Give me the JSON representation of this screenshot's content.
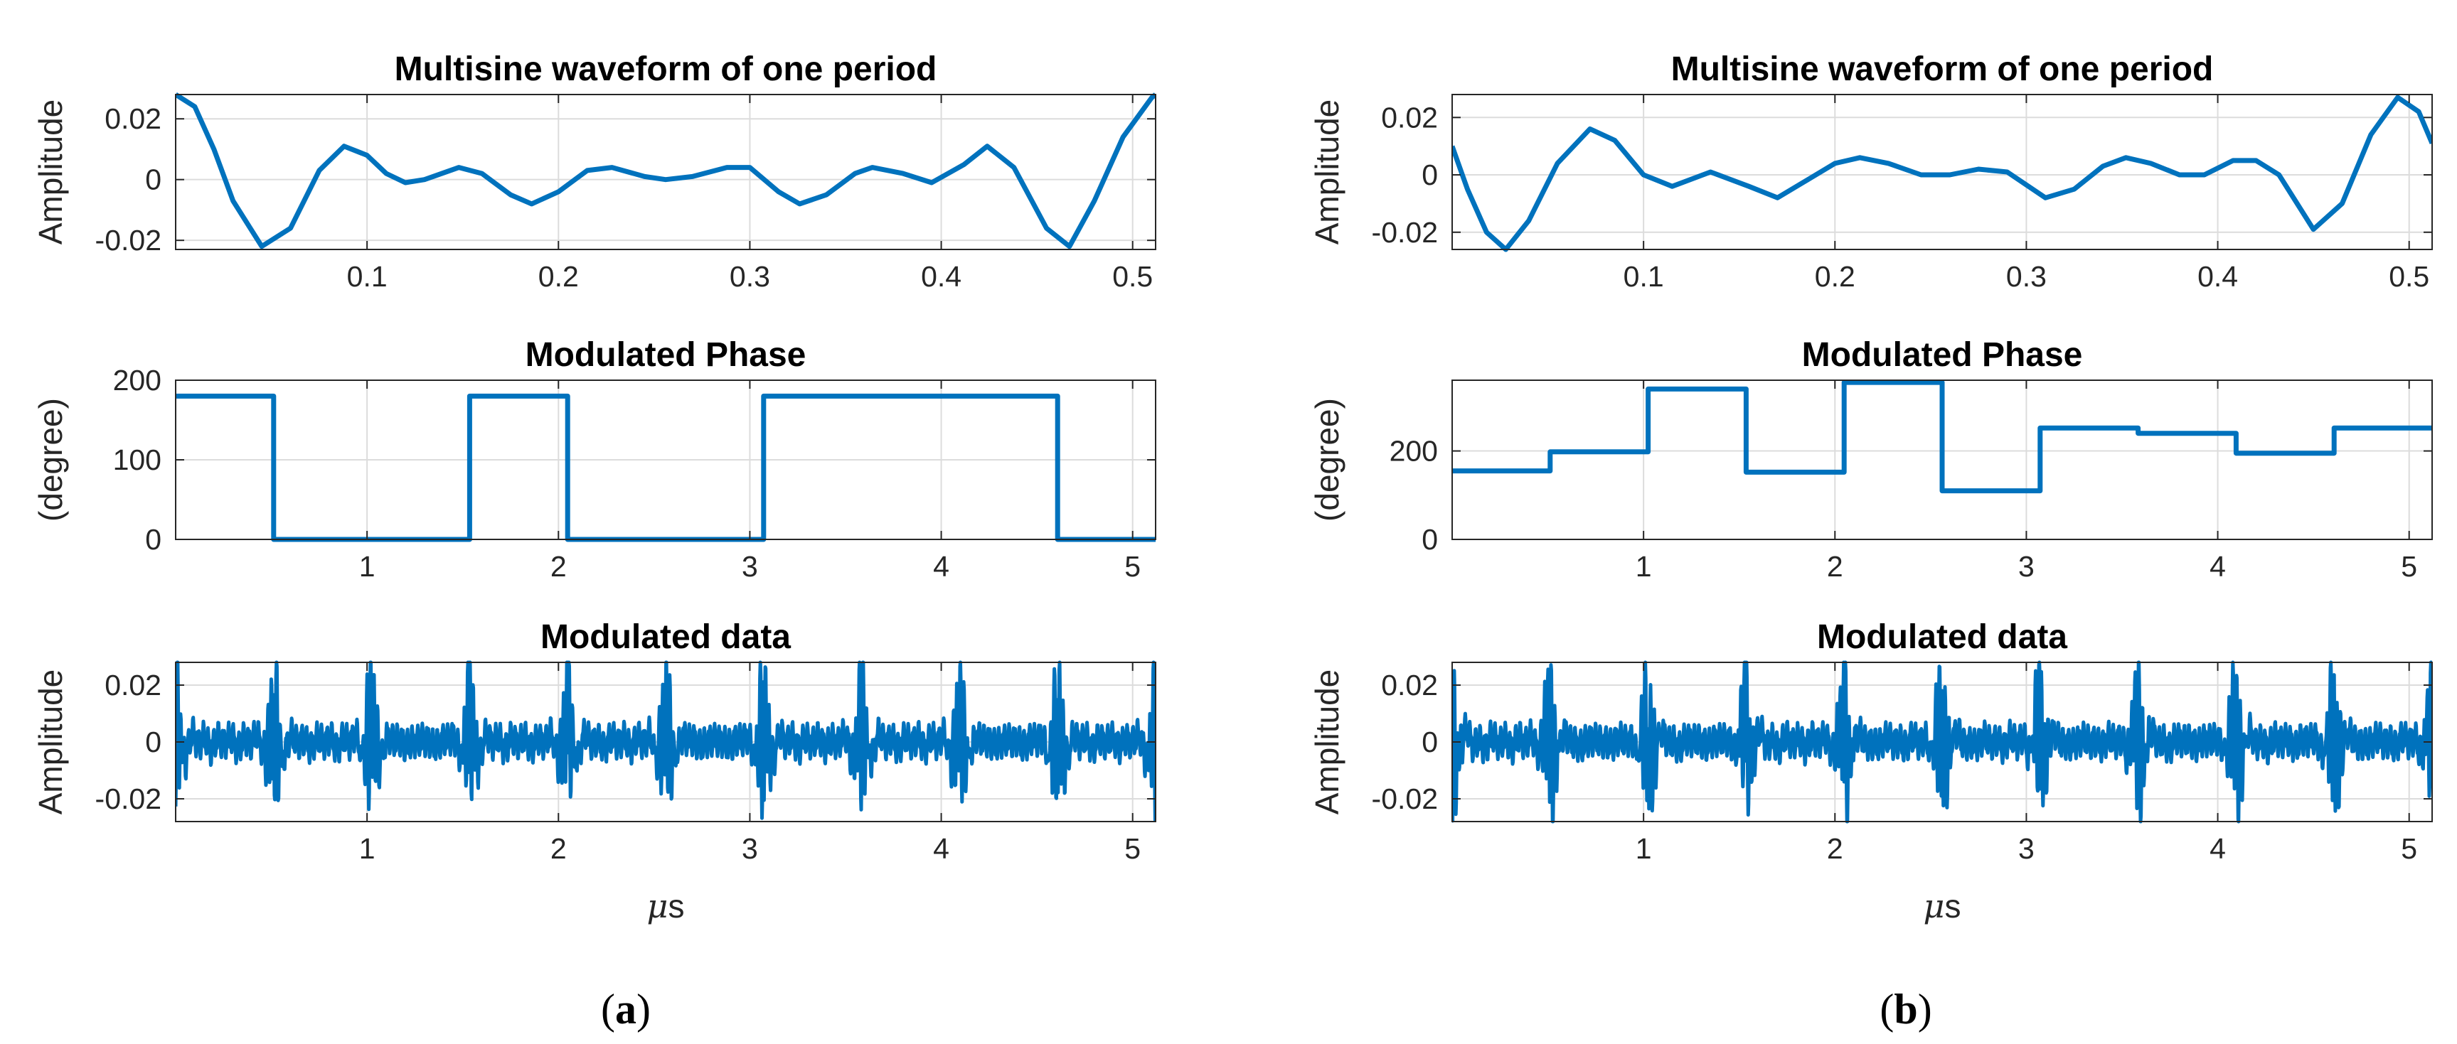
{
  "chart_data": [
    {
      "id": "a-waveform",
      "type": "line",
      "title": "Multisine waveform of one period",
      "xlabel": "",
      "ylabel": "Amplitude",
      "xlim": [
        0,
        0.512
      ],
      "ylim": [
        -0.023,
        0.028
      ],
      "xticks": [
        0.1,
        0.2,
        0.3,
        0.4,
        0.5
      ],
      "xtick_labels": [
        "0.1",
        "0.2",
        "0.3",
        "0.4",
        "0.5"
      ],
      "yticks": [
        -0.02,
        0,
        0.02
      ],
      "ytick_labels": [
        "-0.02",
        "0",
        "0.02"
      ],
      "grid": true,
      "series": [
        {
          "name": "waveform",
          "color": "#0072bd",
          "x": [
            0,
            0.01,
            0.02,
            0.03,
            0.045,
            0.06,
            0.075,
            0.088,
            0.1,
            0.11,
            0.12,
            0.13,
            0.148,
            0.16,
            0.175,
            0.186,
            0.2,
            0.215,
            0.228,
            0.245,
            0.256,
            0.27,
            0.288,
            0.3,
            0.315,
            0.326,
            0.34,
            0.355,
            0.364,
            0.38,
            0.395,
            0.412,
            0.424,
            0.438,
            0.455,
            0.467,
            0.48,
            0.495,
            0.51,
            0.512
          ],
          "values": [
            0.028,
            0.024,
            0.01,
            -0.007,
            -0.022,
            -0.016,
            0.003,
            0.011,
            0.008,
            0.002,
            -0.001,
            0.0,
            0.004,
            0.002,
            -0.005,
            -0.008,
            -0.004,
            0.003,
            0.004,
            0.001,
            0.0,
            0.001,
            0.004,
            0.004,
            -0.004,
            -0.008,
            -0.005,
            0.002,
            0.004,
            0.002,
            -0.001,
            0.005,
            0.011,
            0.004,
            -0.016,
            -0.022,
            -0.007,
            0.014,
            0.027,
            0.028
          ]
        }
      ]
    },
    {
      "id": "a-phase",
      "type": "line",
      "title": "Modulated Phase",
      "xlabel": "",
      "ylabel": "(degree)",
      "xlim": [
        0,
        5.12
      ],
      "ylim": [
        0,
        200
      ],
      "xticks": [
        1,
        2,
        3,
        4,
        5
      ],
      "xtick_labels": [
        "1",
        "2",
        "3",
        "4",
        "5"
      ],
      "yticks": [
        0,
        100,
        200
      ],
      "ytick_labels": [
        "0",
        "100",
        "200"
      ],
      "grid": true,
      "series": [
        {
          "name": "phase",
          "color": "#0072bd",
          "x": [
            0,
            0.512,
            0.512,
            1.536,
            1.536,
            2.048,
            2.048,
            3.072,
            3.072,
            4.608,
            4.608,
            5.12
          ],
          "values": [
            180,
            180,
            0,
            0,
            180,
            180,
            0,
            0,
            180,
            180,
            0,
            0
          ]
        }
      ]
    },
    {
      "id": "a-data",
      "type": "line",
      "title": "Modulated data",
      "xlabel": "μs",
      "ylabel": "Amplitude",
      "xlim": [
        0,
        5.12
      ],
      "ylim": [
        -0.028,
        0.028
      ],
      "xticks": [
        1,
        2,
        3,
        4,
        5
      ],
      "xtick_labels": [
        "1",
        "2",
        "3",
        "4",
        "5"
      ],
      "yticks": [
        -0.02,
        0,
        0.02
      ],
      "ytick_labels": [
        "-0.02",
        "0",
        "0.02"
      ],
      "grid": true,
      "series": [
        {
          "name": "modulated",
          "color": "#0072bd",
          "phases_deg": [
            180,
            0,
            0,
            180,
            0,
            0,
            180,
            180,
            180,
            0
          ],
          "burst_scale": [
            0.9,
            1.0,
            0.85,
            1.0,
            0.8,
            1.0,
            0.95,
            0.85,
            0.9,
            1.0
          ],
          "peak_amplitude": 0.028
        }
      ]
    },
    {
      "id": "b-waveform",
      "type": "line",
      "title": "Multisine waveform of one period",
      "xlabel": "",
      "ylabel": "Amplitude",
      "xlim": [
        0,
        0.512
      ],
      "ylim": [
        -0.026,
        0.028
      ],
      "xticks": [
        0.1,
        0.2,
        0.3,
        0.4,
        0.5
      ],
      "xtick_labels": [
        "0.1",
        "0.2",
        "0.3",
        "0.4",
        "0.5"
      ],
      "yticks": [
        -0.02,
        0,
        0.02
      ],
      "ytick_labels": [
        "-0.02",
        "0",
        "0.02"
      ],
      "grid": true,
      "series": [
        {
          "name": "waveform",
          "color": "#0072bd",
          "x": [
            0,
            0.008,
            0.018,
            0.028,
            0.04,
            0.055,
            0.072,
            0.085,
            0.1,
            0.115,
            0.135,
            0.155,
            0.17,
            0.185,
            0.2,
            0.213,
            0.228,
            0.245,
            0.26,
            0.275,
            0.29,
            0.31,
            0.325,
            0.34,
            0.352,
            0.365,
            0.38,
            0.393,
            0.408,
            0.42,
            0.432,
            0.45,
            0.465,
            0.48,
            0.494,
            0.505,
            0.512
          ],
          "values": [
            0.01,
            -0.005,
            -0.02,
            -0.026,
            -0.016,
            0.004,
            0.016,
            0.012,
            0.0,
            -0.004,
            0.001,
            -0.004,
            -0.008,
            -0.002,
            0.004,
            0.006,
            0.004,
            0.0,
            0.0,
            0.002,
            0.001,
            -0.008,
            -0.005,
            0.003,
            0.006,
            0.004,
            0.0,
            0.0,
            0.005,
            0.005,
            0.0,
            -0.019,
            -0.01,
            0.014,
            0.027,
            0.022,
            0.011
          ]
        }
      ]
    },
    {
      "id": "b-phase",
      "type": "line",
      "title": "Modulated Phase",
      "xlabel": "",
      "ylabel": "(degree)",
      "xlim": [
        0,
        5.12
      ],
      "ylim": [
        0,
        360
      ],
      "xticks": [
        1,
        2,
        3,
        4,
        5
      ],
      "xtick_labels": [
        "1",
        "2",
        "3",
        "4",
        "5"
      ],
      "yticks": [
        0,
        200
      ],
      "ytick_labels": [
        "0",
        "200"
      ],
      "grid": true,
      "series": [
        {
          "name": "phase",
          "color": "#0072bd",
          "x": [
            0,
            0.512,
            0.512,
            1.024,
            1.024,
            1.536,
            1.536,
            2.048,
            2.048,
            2.56,
            2.56,
            3.072,
            3.072,
            3.584,
            3.584,
            4.096,
            4.096,
            4.608,
            4.608,
            5.12
          ],
          "values": [
            155,
            155,
            198,
            198,
            340,
            340,
            152,
            152,
            355,
            355,
            110,
            110,
            252,
            252,
            240,
            240,
            195,
            195,
            252,
            252
          ]
        }
      ]
    },
    {
      "id": "b-data",
      "type": "line",
      "title": "Modulated data",
      "xlabel": "μs",
      "ylabel": "Amplitude",
      "xlim": [
        0,
        5.12
      ],
      "ylim": [
        -0.028,
        0.028
      ],
      "xticks": [
        1,
        2,
        3,
        4,
        5
      ],
      "xtick_labels": [
        "1",
        "2",
        "3",
        "4",
        "5"
      ],
      "yticks": [
        -0.02,
        0,
        0.02
      ],
      "ytick_labels": [
        "-0.02",
        "0",
        "0.02"
      ],
      "grid": true,
      "series": [
        {
          "name": "modulated",
          "color": "#0072bd",
          "phases_deg": [
            155,
            198,
            340,
            152,
            355,
            110,
            252,
            240,
            195,
            252
          ],
          "burst_scale": [
            1.0,
            0.95,
            1.0,
            0.9,
            1.0,
            0.9,
            0.95,
            1.0,
            0.9,
            1.0
          ],
          "peak_amplitude": 0.028
        }
      ]
    }
  ],
  "panel_labels": {
    "a": "(a)",
    "b": "(b)"
  }
}
